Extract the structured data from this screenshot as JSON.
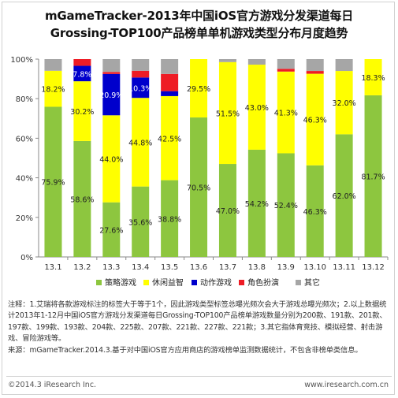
{
  "title_line1": "mGameTracker-2013年中国iOS官方游戏分发渠道每日",
  "title_line2": "Grossing-TOP100产品榜单单机游戏类型分布月度趋势",
  "colors": {
    "strategy": "#8dc63f",
    "casual": "#ffff00",
    "action": "#0000cc",
    "rpg": "#ee1c25",
    "other": "#a6a6a6"
  },
  "chart_data": {
    "type": "bar",
    "stacked": true,
    "categories": [
      "13.1",
      "13.2",
      "13.3",
      "13.4",
      "13.5",
      "13.6",
      "13.7",
      "13.8",
      "13.9",
      "13.10",
      "13.11",
      "13.12"
    ],
    "y_ticks": [
      "0%",
      "20%",
      "40%",
      "60%",
      "80%",
      "100%"
    ],
    "ylim": [
      0,
      100
    ],
    "legend_position": "bottom",
    "series": [
      {
        "name": "策略游戏",
        "color_key": "strategy",
        "values": [
          75.9,
          58.6,
          27.6,
          35.6,
          38.8,
          70.5,
          47.0,
          54.2,
          52.4,
          46.3,
          62.0,
          81.7
        ],
        "labels": [
          "75.9%",
          "58.6%",
          "27.6%",
          "35.6%",
          "38.8%",
          "70.5%",
          "47.0%",
          "54.2%",
          "52.4%",
          "46.3%",
          "62.0%",
          "81.7%"
        ]
      },
      {
        "name": "休闲益智",
        "color_key": "casual",
        "values": [
          18.2,
          30.2,
          44.0,
          44.8,
          42.5,
          29.5,
          51.5,
          43.0,
          41.3,
          46.3,
          32.0,
          18.3
        ],
        "labels": [
          "18.2%",
          "30.2%",
          "44.0%",
          "44.8%",
          "42.5%",
          "29.5%",
          "51.5%",
          "43.0%",
          "41.3%",
          "46.3%",
          "32.0%",
          "18.3%"
        ]
      },
      {
        "name": "动作游戏",
        "color_key": "action",
        "values": [
          0,
          7.8,
          20.9,
          10.3,
          2.5,
          0,
          0,
          0,
          0,
          0,
          0,
          0
        ],
        "labels": [
          "",
          "7.8%",
          "20.9%",
          "10.3%",
          "",
          "",
          "",
          "",
          "",
          "",
          "",
          ""
        ]
      },
      {
        "name": "角色扮演",
        "color_key": "rpg",
        "values": [
          0,
          3.4,
          1.0,
          3.4,
          8.7,
          0,
          0,
          0,
          1.4,
          1.4,
          0,
          0
        ],
        "labels": [
          "",
          "",
          "",
          "",
          "",
          "",
          "",
          "",
          "",
          "",
          "",
          ""
        ]
      },
      {
        "name": "其它",
        "color_key": "other",
        "values": [
          5.9,
          0,
          6.5,
          5.9,
          7.5,
          0,
          1.5,
          2.8,
          4.9,
          6.0,
          6.0,
          0
        ],
        "labels": [
          "",
          "",
          "",
          "",
          "",
          "",
          "",
          "",
          "",
          "",
          "",
          ""
        ]
      }
    ]
  },
  "notes": {
    "line1": "注释：1.艾瑞将各款游戏标注的标签大于等于1个，因此游戏类型标签总曝光频次会大于游戏总曝光频次；2.以上数据统计2013年1-12月中国iOS官方游戏分发渠道每日Grossing-TOP100产品榜单游戏数量分别为200款、191款、201款、197款、199款、193款、204款、225款、207款、221款、227款、221款；3.其它指体育竞技、模拟经营、射击游戏、冒险游戏等。",
    "line2": "来源：mGameTracker.2014.3.基于对中国iOS官方应用商店的游戏榜单监测数据统计，不包含非榜单类信息。"
  },
  "footer": {
    "copyright": "©2014.3 iResearch Inc.",
    "website": "www.iresearch.com.cn"
  }
}
